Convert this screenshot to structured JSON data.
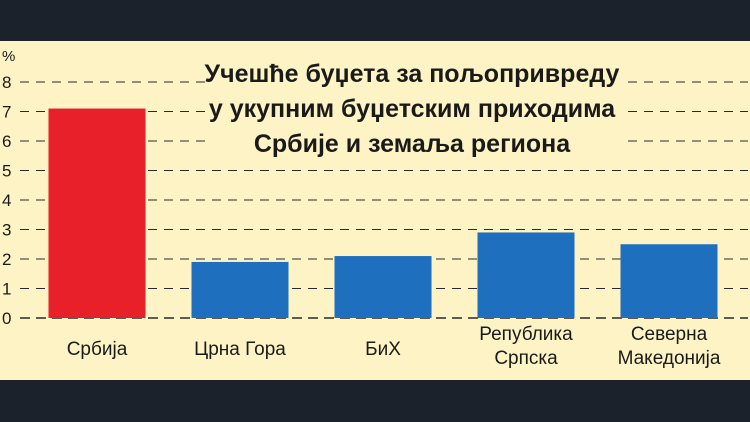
{
  "chart_data": {
    "type": "bar",
    "title_lines": [
      "Учешће буџета за пољопривреду",
      "у укупним буџетским приходима",
      "Србије и земаља региона"
    ],
    "unit": "%",
    "categories": [
      [
        "Србија"
      ],
      [
        "Црна Гора"
      ],
      [
        "БиХ"
      ],
      [
        "Република",
        "Српска"
      ],
      [
        "Северна",
        "Македонија"
      ]
    ],
    "values": [
      7.1,
      1.9,
      2.1,
      2.9,
      2.5
    ],
    "bar_colors": [
      "#e8202a",
      "#1f6fbf",
      "#1f6fbf",
      "#1f6fbf",
      "#1f6fbf"
    ],
    "ylim": [
      0,
      8
    ],
    "yticks": [
      "0",
      "1",
      "2",
      "3",
      "4",
      "5",
      "6",
      "7",
      "8"
    ],
    "grid": "dashed",
    "legend": "none"
  }
}
